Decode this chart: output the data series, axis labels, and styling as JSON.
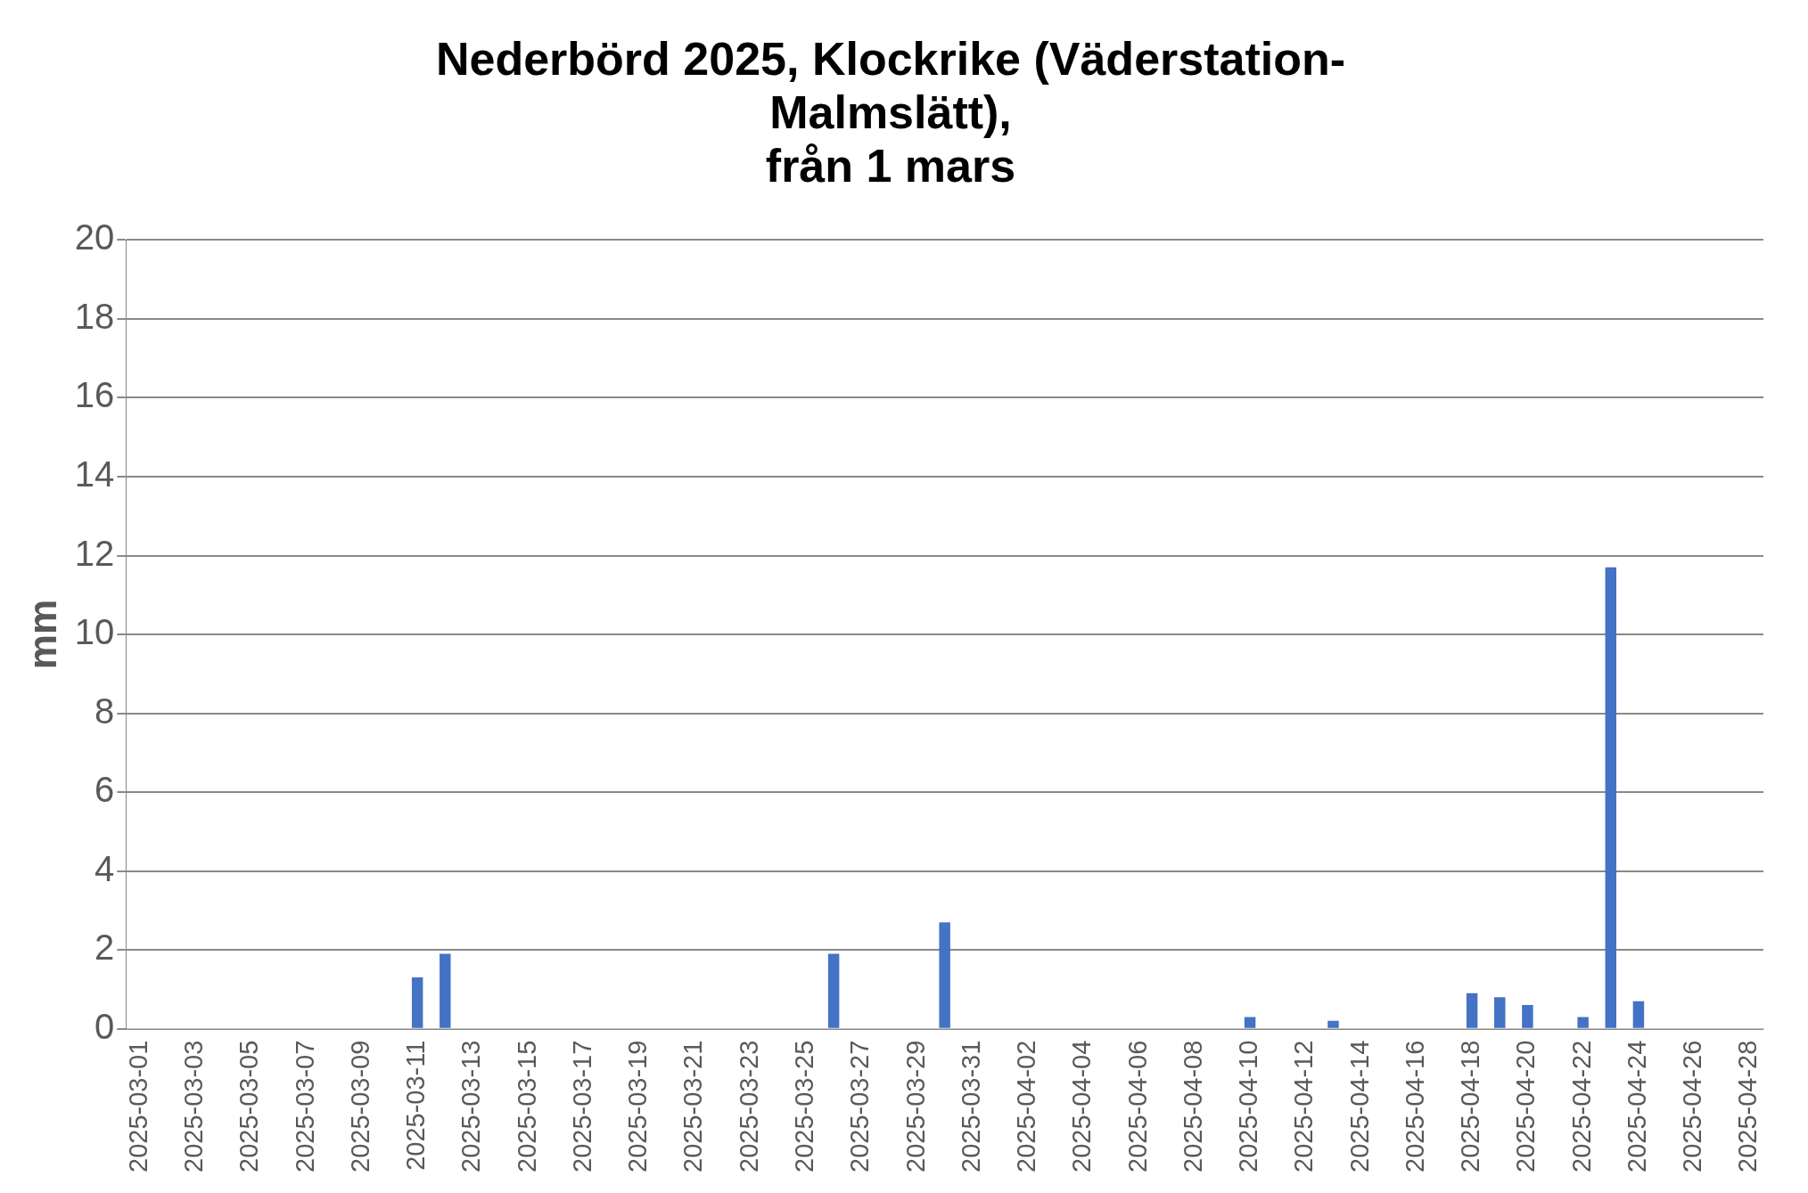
{
  "chart_data": {
    "type": "bar",
    "title": "Nederbörd 2025, Klockrike (Väderstation-\nMalmslätt),\nfrån 1 mars",
    "ylabel": "mm",
    "categories": [
      "2025-03-01",
      null,
      "2025-03-03",
      null,
      "2025-03-05",
      null,
      "2025-03-07",
      null,
      "2025-03-09",
      null,
      "2025-03-11",
      null,
      "2025-03-13",
      null,
      "2025-03-15",
      null,
      "2025-03-17",
      null,
      "2025-03-19",
      null,
      "2025-03-21",
      null,
      "2025-03-23",
      null,
      "2025-03-25",
      null,
      "2025-03-27",
      null,
      "2025-03-29",
      null,
      "2025-03-31",
      null,
      "2025-04-02",
      null,
      "2025-04-04",
      null,
      "2025-04-06",
      null,
      "2025-04-08",
      null,
      "2025-04-10",
      null,
      "2025-04-12",
      null,
      "2025-04-14",
      null,
      "2025-04-16",
      null,
      "2025-04-18",
      null,
      "2025-04-20",
      null,
      "2025-04-22",
      null,
      "2025-04-24",
      null,
      "2025-04-26",
      null,
      "2025-04-28"
    ],
    "values": [
      0,
      0,
      0,
      0,
      0,
      0,
      0,
      0,
      0,
      0,
      1.3,
      1.9,
      0,
      0,
      0,
      0,
      0,
      0,
      0,
      0,
      0,
      0,
      0,
      0,
      0,
      1.9,
      0,
      0,
      0,
      2.7,
      0,
      0,
      0,
      0,
      0,
      0,
      0,
      0,
      0,
      0,
      0.3,
      0,
      0,
      0.2,
      0,
      0,
      0,
      0,
      0.9,
      0.8,
      0.6,
      0,
      0.3,
      11.7,
      0.7,
      0,
      0,
      0,
      0
    ],
    "color": "#4472c4",
    "ylim": [
      0,
      20
    ],
    "yticks": [
      0,
      2,
      4,
      6,
      8,
      10,
      12,
      14,
      16,
      18,
      20
    ],
    "grid": "y",
    "legend": false
  }
}
